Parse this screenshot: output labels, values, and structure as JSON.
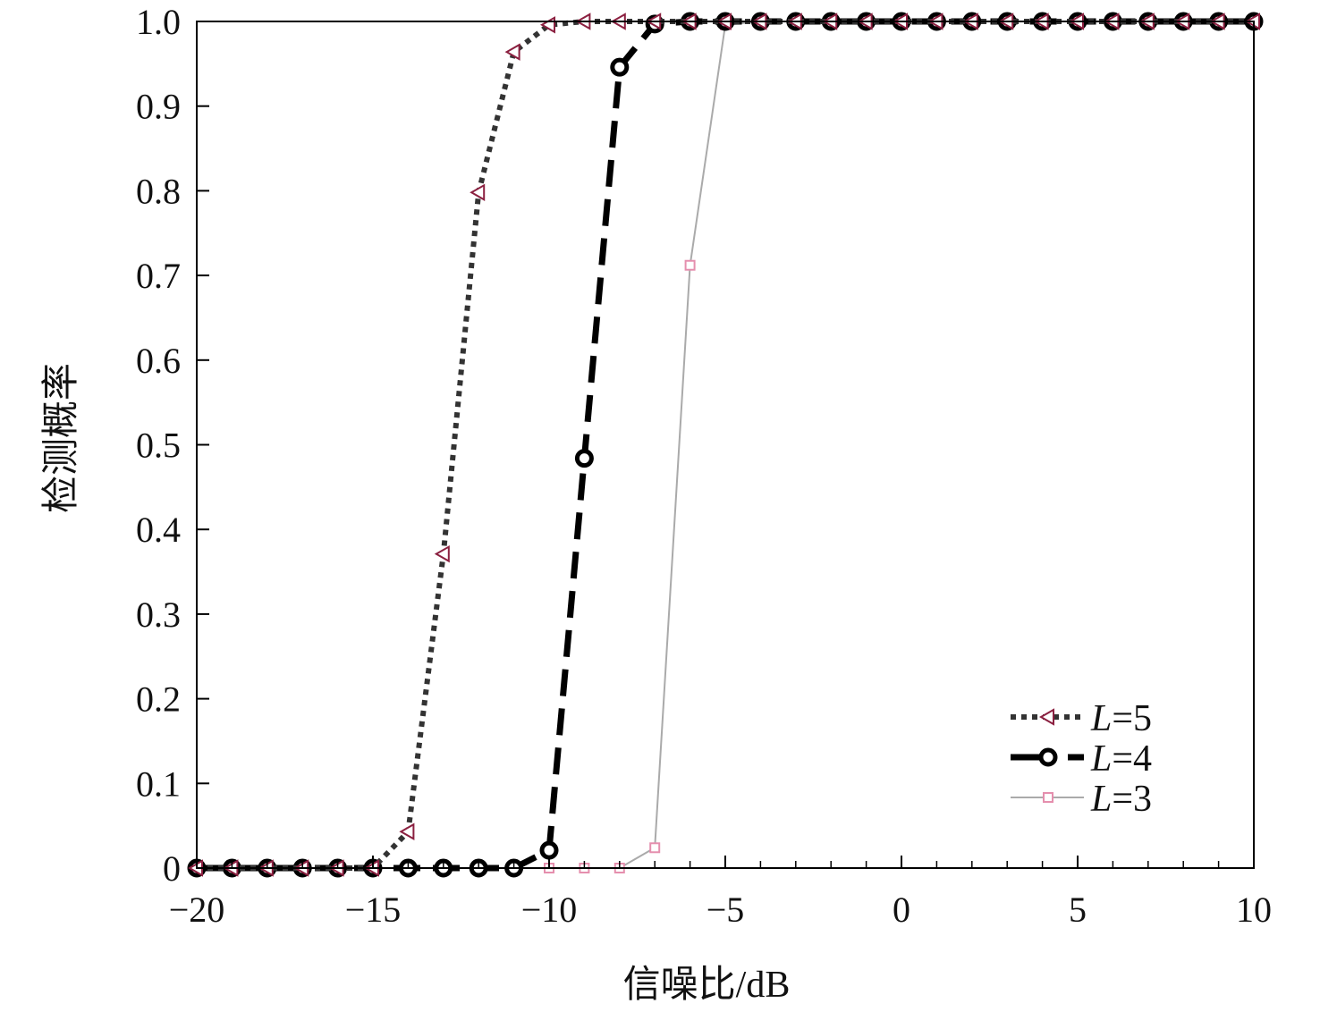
{
  "chart_data": {
    "type": "line",
    "title": "",
    "xlabel": "信噪比/dB",
    "ylabel": "检测概率",
    "xlim": [
      -20,
      10
    ],
    "ylim": [
      0,
      1.0
    ],
    "xticks": [
      -20,
      -15,
      -10,
      -5,
      0,
      5,
      10
    ],
    "xtick_labels": [
      "−20",
      "−15",
      "−10",
      "−5",
      "0",
      "5",
      "10"
    ],
    "yticks": [
      0,
      0.1,
      0.2,
      0.3,
      0.4,
      0.5,
      0.6,
      0.7,
      0.8,
      0.9,
      1.0
    ],
    "ytick_labels": [
      "0",
      "0.1",
      "0.2",
      "0.3",
      "0.4",
      "0.5",
      "0.6",
      "0.7",
      "0.8",
      "0.9",
      "1.0"
    ],
    "grid": false,
    "legend_placement": "bottom-right",
    "x": [
      -20,
      -19,
      -18,
      -17,
      -16,
      -15,
      -14,
      -13,
      -12,
      -11,
      -10,
      -9,
      -8,
      -7,
      -6,
      -5,
      -4,
      -3,
      -2,
      -1,
      0,
      1,
      2,
      3,
      4,
      5,
      6,
      7,
      8,
      9,
      10
    ],
    "series": [
      {
        "name": "L=5",
        "legend_italic": "L",
        "legend_rest": "=5",
        "marker": "triangle-left",
        "line_style": "dotted",
        "line_color": "#333333",
        "marker_color": "#8b2040",
        "values": [
          0,
          0,
          0,
          0,
          0,
          0,
          0.043,
          0.371,
          0.798,
          0.964,
          0.996,
          1,
          1,
          1,
          1,
          1,
          1,
          1,
          1,
          1,
          1,
          1,
          1,
          1,
          1,
          1,
          1,
          1,
          1,
          1,
          1
        ]
      },
      {
        "name": "L=4",
        "legend_italic": "L",
        "legend_rest": "=4",
        "marker": "circle",
        "line_style": "dashed",
        "line_color": "#000000",
        "marker_color": "#000000",
        "values": [
          0,
          0,
          0,
          0,
          0,
          0,
          0,
          0,
          0,
          0,
          0.021,
          0.484,
          0.946,
          0.997,
          1,
          1,
          1,
          1,
          1,
          1,
          1,
          1,
          1,
          1,
          1,
          1,
          1,
          1,
          1,
          1,
          1
        ]
      },
      {
        "name": "L=3",
        "legend_italic": "L",
        "legend_rest": "=3",
        "marker": "square",
        "line_style": "solid",
        "line_color": "#aaaaaa",
        "marker_color": "#e58fae",
        "values": [
          0,
          0,
          0,
          0,
          0,
          0,
          0,
          0,
          0,
          0,
          0,
          0,
          0,
          0.024,
          0.712,
          0.996,
          1,
          1,
          1,
          1,
          1,
          1,
          1,
          1,
          1,
          1,
          1,
          1,
          1,
          1,
          1
        ]
      }
    ]
  }
}
